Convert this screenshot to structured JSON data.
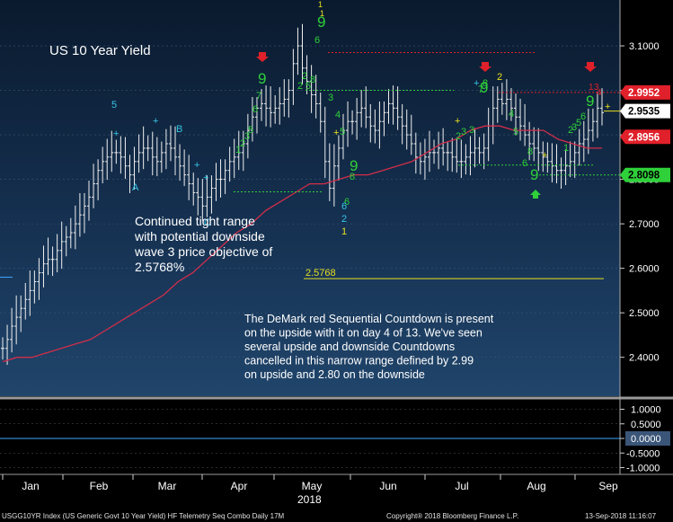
{
  "chart_data": {
    "type": "ohlc",
    "title": "US 10 Year Yield",
    "ylim": [
      2.3,
      3.18
    ],
    "ticks": [
      "2.4000",
      "2.5000",
      "2.6000",
      "2.7000",
      "2.8000",
      "2.9000",
      "3.0000",
      "3.1000"
    ],
    "tick_values": [
      2.4,
      2.5,
      2.6,
      2.7,
      2.8,
      2.9,
      3.0,
      3.1
    ],
    "months": [
      "Jan",
      "Feb",
      "Mar",
      "Apr",
      "May",
      "Jun",
      "Jul",
      "Aug",
      "Sep"
    ],
    "year_label": "2018",
    "price_labels": [
      {
        "text": "2.9952",
        "value": 2.9952,
        "color": "#e0202a",
        "text_color": "#ffffff"
      },
      {
        "text": "2.9535",
        "value": 2.9535,
        "color": "#ffffff",
        "text_color": "#000000"
      },
      {
        "text": "2.8956",
        "value": 2.8956,
        "color": "#e0202a",
        "text_color": "#ffffff"
      },
      {
        "text": "2.8098",
        "value": 2.8098,
        "color": "#2fd03a",
        "text_color": "#000000"
      }
    ],
    "levels": [
      {
        "label": "2.5768",
        "value": 2.5768,
        "color": "#e8e020"
      }
    ],
    "wave_labels": [
      "5",
      "A",
      "B",
      "C"
    ],
    "annotation_1": "Continued tight range\nwith potential downside\nwave 3 price objective of\n2.5768%",
    "annotation_2": "The DeMark red Sequential Countdown is present\non the upside with it on day 4 of 13.  We've seen\nseveral upside and downside Countdowns\ncancelled  in this narrow range defined by 2.99\non upside and 2.80 on the downside",
    "indicator_ticks": [
      "1.0000",
      "0.5000",
      "0.0000",
      "-0.5000",
      "-1.0000"
    ],
    "indicator_tick_values": [
      1.0,
      0.5,
      0.0,
      -0.5,
      -1.0
    ],
    "indicator_current": "0.0000",
    "footer_left": "USGG10YR Index (US Generic Govt 10 Year Yield) HF Telemetry Seq Combo  Daily 17M",
    "footer_mid": "Copyright® 2018 Bloomberg Finance L.P.",
    "footer_right": "13-Sep-2018 11:16:07",
    "series": [
      {
        "name": "close",
        "values": [
          2.42,
          2.44,
          2.47,
          2.49,
          2.51,
          2.53,
          2.55,
          2.57,
          2.59,
          2.61,
          2.62,
          2.62,
          2.64,
          2.66,
          2.67,
          2.68,
          2.7,
          2.72,
          2.74,
          2.76,
          2.79,
          2.82,
          2.84,
          2.85,
          2.86,
          2.86,
          2.85,
          2.83,
          2.81,
          2.84,
          2.86,
          2.87,
          2.87,
          2.85,
          2.84,
          2.86,
          2.88,
          2.87,
          2.85,
          2.83,
          2.81,
          2.79,
          2.77,
          2.76,
          2.74,
          2.76,
          2.78,
          2.8,
          2.8,
          2.82,
          2.84,
          2.85,
          2.86,
          2.88,
          2.91,
          2.94,
          2.96,
          2.97,
          2.96,
          2.95,
          2.96,
          2.97,
          2.98,
          3.0,
          3.06,
          3.1,
          3.05,
          3.02,
          2.99,
          2.97,
          2.93,
          2.84,
          2.78,
          2.83,
          2.87,
          2.91,
          2.93,
          2.93,
          2.95,
          2.96,
          2.94,
          2.92,
          2.91,
          2.93,
          2.95,
          2.97,
          2.96,
          2.94,
          2.92,
          2.9,
          2.88,
          2.85,
          2.84,
          2.85,
          2.86,
          2.86,
          2.87,
          2.86,
          2.86,
          2.85,
          2.84,
          2.84,
          2.85,
          2.86,
          2.87,
          2.86,
          2.87,
          2.92,
          2.96,
          2.98,
          2.97,
          2.98,
          2.96,
          2.94,
          2.92,
          2.9,
          2.88,
          2.87,
          2.86,
          2.85,
          2.84,
          2.83,
          2.82,
          2.82,
          2.83,
          2.84,
          2.86,
          2.88,
          2.89,
          2.91,
          2.93,
          2.96,
          2.95
        ]
      },
      {
        "name": "moving_average",
        "values": [
          2.39,
          2.4,
          2.4,
          2.41,
          2.42,
          2.43,
          2.44,
          2.46,
          2.48,
          2.5,
          2.52,
          2.54,
          2.57,
          2.59,
          2.62,
          2.65,
          2.68,
          2.7,
          2.73,
          2.75,
          2.77,
          2.79,
          2.79,
          2.8,
          2.81,
          2.81,
          2.82,
          2.83,
          2.84,
          2.86,
          2.88,
          2.89,
          2.91,
          2.92,
          2.92,
          2.91,
          2.91,
          2.91,
          2.89,
          2.88,
          2.87,
          2.87
        ]
      }
    ]
  }
}
